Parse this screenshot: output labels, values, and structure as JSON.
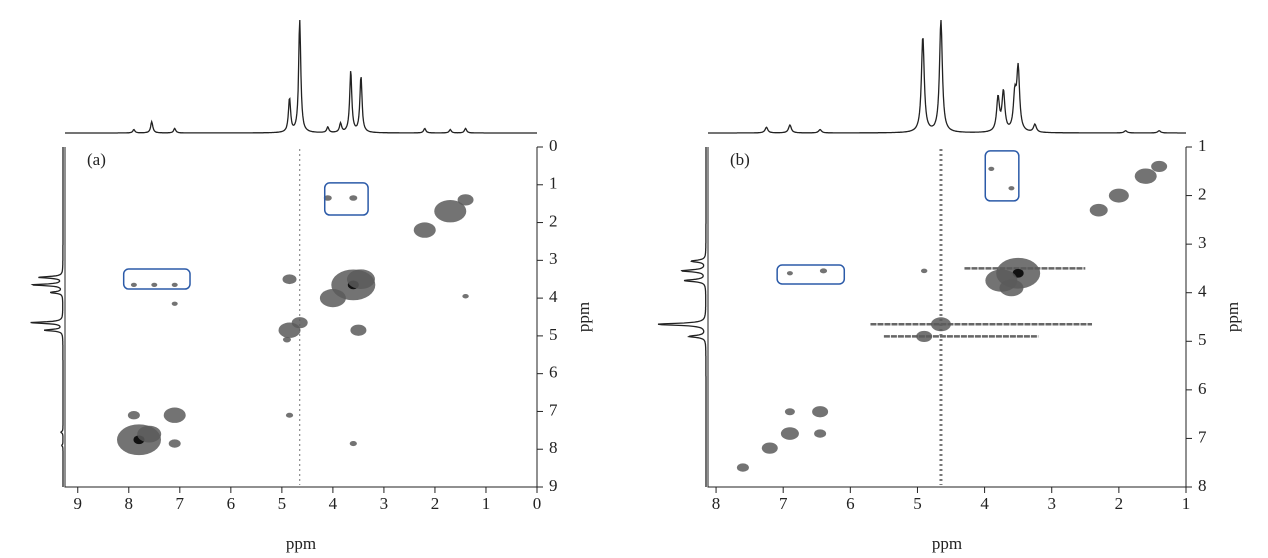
{
  "chart_data": [
    {
      "type": "nmr2d",
      "label": "(a)",
      "xlabel": "ppm",
      "ylabel": "ppm",
      "xlim": [
        9.25,
        0
      ],
      "ylim": [
        0,
        9
      ],
      "xticks": [
        9,
        8,
        7,
        6,
        5,
        4,
        3,
        2,
        1,
        0
      ],
      "yticks": [
        0,
        1,
        2,
        3,
        4,
        5,
        6,
        7,
        8,
        9
      ],
      "peaks": {
        "x": [
          7.8,
          7.6,
          7.1,
          7.9,
          7.1,
          4.85,
          4.65,
          3.6,
          3.45,
          4.0,
          4.85,
          3.5,
          1.7,
          2.2,
          1.4,
          4.1,
          3.6,
          7.9,
          7.5,
          7.1,
          7.1,
          3.6,
          4.85,
          1.4,
          4.9
        ],
        "y": [
          7.75,
          7.6,
          7.1,
          7.1,
          7.85,
          4.85,
          4.65,
          3.65,
          3.5,
          4.0,
          3.5,
          4.85,
          1.7,
          2.2,
          1.4,
          1.35,
          1.35,
          3.65,
          3.65,
          3.65,
          4.15,
          7.85,
          7.1,
          3.95,
          5.1
        ],
        "intensity": [
          1.0,
          0.5,
          0.45,
          0.2,
          0.2,
          0.45,
          0.3,
          1.0,
          0.6,
          0.55,
          0.25,
          0.3,
          0.7,
          0.45,
          0.3,
          0.1,
          0.1,
          0.05,
          0.05,
          0.05,
          0.05,
          0.08,
          0.08,
          0.06,
          0.1
        ]
      },
      "boxes": [
        {
          "xlim": [
            4.16,
            3.31
          ],
          "ylim": [
            0.95,
            1.8
          ]
        },
        {
          "xlim": [
            8.1,
            6.8
          ],
          "ylim": [
            3.23,
            3.76
          ]
        }
      ],
      "ridges_x": [
        4.65
      ],
      "ridges_y": [],
      "projection_x": {
        "ppm": [
          7.9,
          7.55,
          7.1,
          4.85,
          4.65,
          4.1,
          3.85,
          3.65,
          3.45,
          2.2,
          1.7,
          1.4
        ],
        "height": [
          0.03,
          0.1,
          0.04,
          0.3,
          1.0,
          0.05,
          0.08,
          0.55,
          0.5,
          0.04,
          0.03,
          0.04
        ]
      },
      "projection_y": {
        "ppm": [
          7.9,
          7.55,
          4.85,
          4.65,
          3.85,
          3.65,
          3.45
        ],
        "height": [
          0.03,
          0.05,
          0.45,
          0.8,
          0.3,
          0.75,
          0.6
        ]
      }
    },
    {
      "type": "nmr2d",
      "label": "(b)",
      "xlabel": "ppm",
      "ylabel": "ppm",
      "xlim": [
        8.12,
        1
      ],
      "ylim": [
        1,
        8
      ],
      "xticks": [
        8,
        7,
        6,
        5,
        4,
        3,
        2,
        1
      ],
      "yticks": [
        1,
        2,
        3,
        4,
        5,
        6,
        7,
        8
      ],
      "peaks": {
        "x": [
          7.6,
          7.2,
          6.9,
          6.45,
          6.9,
          6.45,
          3.5,
          3.75,
          3.6,
          2.3,
          2.0,
          1.6,
          1.4,
          4.9,
          4.65,
          3.9,
          3.6,
          6.9,
          6.4,
          4.9
        ],
        "y": [
          7.6,
          7.2,
          6.9,
          6.45,
          6.45,
          6.9,
          3.6,
          3.75,
          3.9,
          2.3,
          2.0,
          1.6,
          1.4,
          4.9,
          4.65,
          1.45,
          1.85,
          3.6,
          3.55,
          3.55
        ],
        "intensity": [
          0.2,
          0.3,
          0.35,
          0.3,
          0.15,
          0.2,
          1.0,
          0.7,
          0.5,
          0.35,
          0.4,
          0.45,
          0.3,
          0.3,
          0.4,
          0.05,
          0.05,
          0.05,
          0.08,
          0.06
        ]
      },
      "boxes": [
        {
          "xlim": [
            3.99,
            3.49
          ],
          "ylim": [
            1.08,
            2.11
          ]
        },
        {
          "xlim": [
            7.09,
            6.09
          ],
          "ylim": [
            3.43,
            3.82
          ]
        }
      ],
      "ridges_x": [
        4.65
      ],
      "ridges_y": [
        {
          "y": 3.5,
          "x": [
            4.3,
            2.5
          ]
        },
        {
          "y": 4.65,
          "x": [
            5.7,
            2.4
          ]
        },
        {
          "y": 4.9,
          "x": [
            5.5,
            3.2
          ]
        }
      ],
      "projection_x": {
        "ppm": [
          7.25,
          6.9,
          6.45,
          4.92,
          4.65,
          3.8,
          3.72,
          3.55,
          3.5,
          3.25,
          1.9,
          1.4
        ],
        "height": [
          0.05,
          0.07,
          0.03,
          0.85,
          1.0,
          0.3,
          0.35,
          0.3,
          0.55,
          0.07,
          0.02,
          0.02
        ]
      },
      "projection_y": {
        "ppm": [
          4.9,
          4.65,
          3.75,
          3.55,
          3.35
        ],
        "height": [
          0.35,
          1.0,
          0.45,
          0.5,
          0.3
        ]
      }
    }
  ]
}
